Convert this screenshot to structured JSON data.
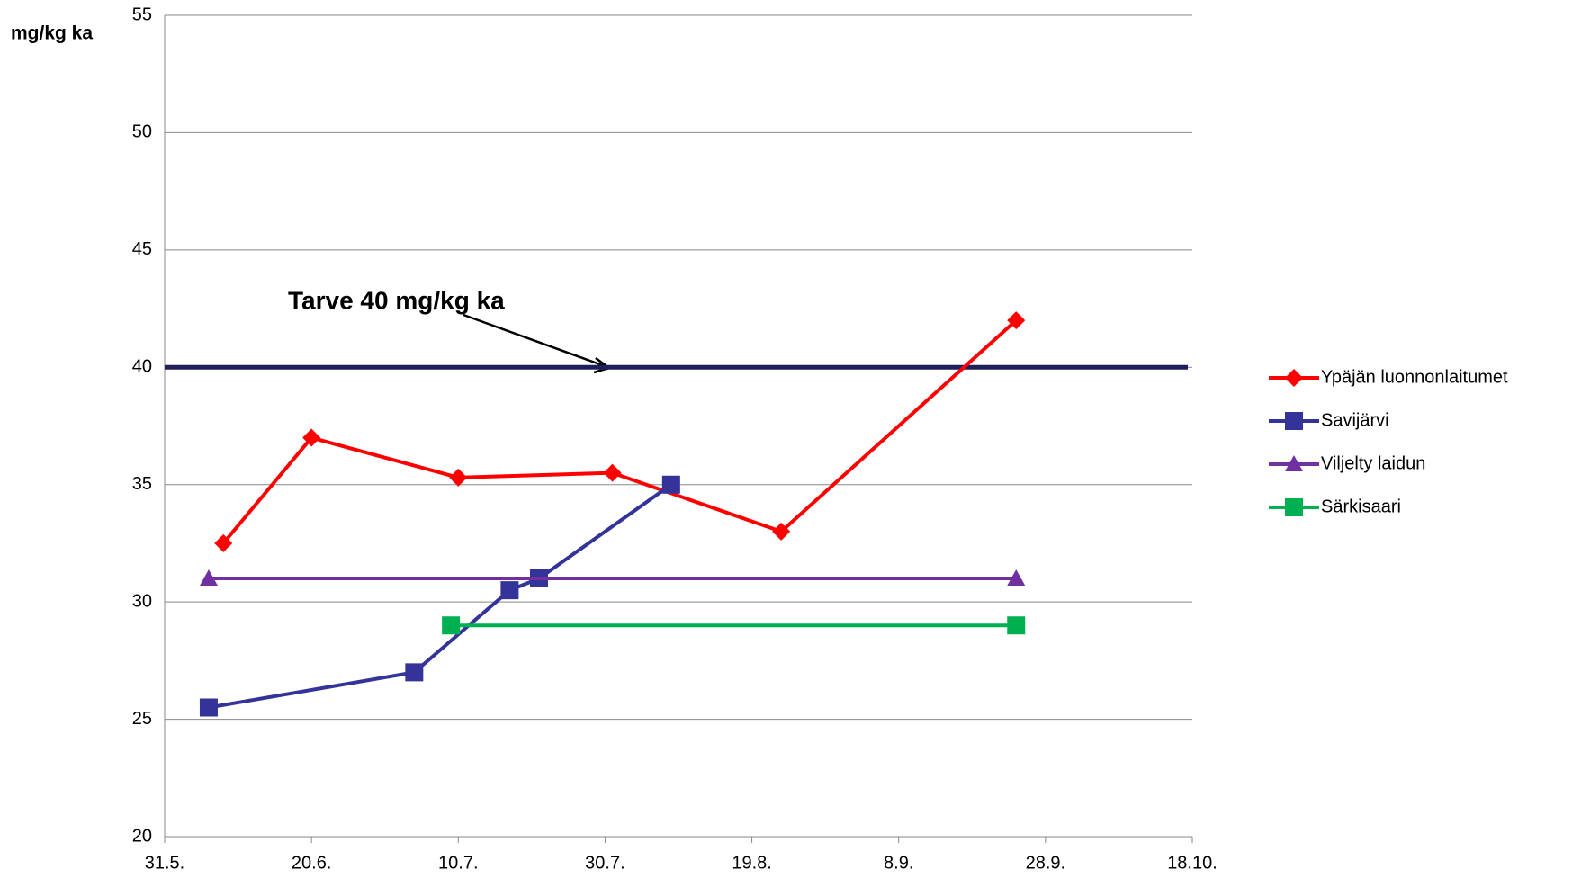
{
  "chart_data": {
    "type": "line",
    "y_label": "mg/kg ka",
    "annotation": "Tarve 40 mg/kg ka",
    "threshold": 40,
    "threshold_color": "#1f1f5c",
    "xlim": [
      0,
      140
    ],
    "xticks": [
      {
        "value": 0,
        "label": "31.5."
      },
      {
        "value": 20,
        "label": "20.6."
      },
      {
        "value": 40,
        "label": "10.7."
      },
      {
        "value": 60,
        "label": "30.7."
      },
      {
        "value": 80,
        "label": "19.8."
      },
      {
        "value": 100,
        "label": "8.9."
      },
      {
        "value": 120,
        "label": "28.9."
      },
      {
        "value": 140,
        "label": "18.10."
      }
    ],
    "ylim": [
      20,
      55
    ],
    "yticks": [
      20,
      25,
      30,
      35,
      40,
      45,
      50,
      55
    ],
    "grid": true,
    "legend": "right",
    "series": [
      {
        "name": "Ypäjän luonnonlaitumet",
        "color": "#ff0000",
        "marker": "diamond",
        "x": [
          8,
          20,
          40,
          61,
          84,
          116
        ],
        "values": [
          32.5,
          37,
          35.3,
          35.5,
          33,
          42
        ]
      },
      {
        "name": "Savijärvi",
        "color": "#333399",
        "marker": "square",
        "x": [
          6,
          34,
          47,
          51,
          69
        ],
        "values": [
          25.5,
          27,
          30.5,
          31,
          35
        ]
      },
      {
        "name": "Viljelty laidun",
        "color": "#7030a0",
        "marker": "triangle",
        "x": [
          6,
          116
        ],
        "values": [
          31,
          31
        ]
      },
      {
        "name": "Särkisaari",
        "color": "#00b050",
        "marker": "square",
        "x": [
          39,
          116
        ],
        "values": [
          29,
          29
        ]
      }
    ]
  }
}
